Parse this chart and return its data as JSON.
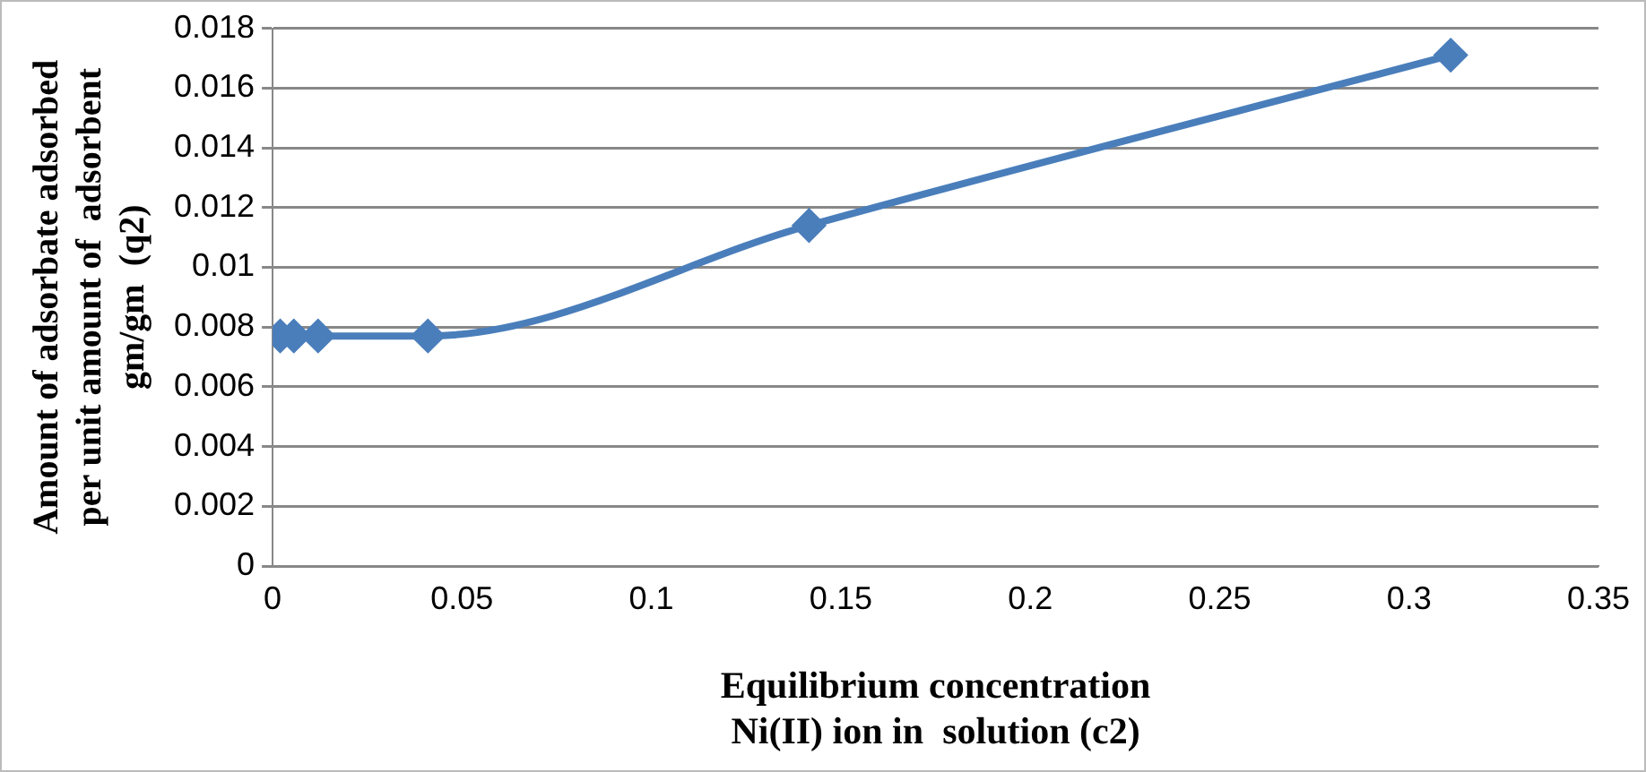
{
  "chart_data": {
    "type": "line",
    "xlabel": "Equilibrium concentration\nNi(II) ion in  solution (c2)",
    "ylabel": "Amount of adsorbate adsorbed\nper unit amount of  adsorbent\ngm/gm  (q2)",
    "x": [
      0.002,
      0.0056,
      0.012,
      0.041,
      0.1416,
      0.311
    ],
    "series": [
      {
        "color": "#4a7ebb",
        "values": [
          0.0077,
          0.0077,
          0.0077,
          0.0077,
          0.0114,
          0.0171
        ]
      }
    ],
    "xlim": [
      0,
      0.35
    ],
    "xticks": [
      0,
      0.05,
      0.1,
      0.15,
      0.2,
      0.25,
      0.3,
      0.35
    ],
    "ylim": [
      0,
      0.018
    ],
    "yticks": [
      0,
      0.002,
      0.004,
      0.006,
      0.008,
      0.01,
      0.012,
      0.014,
      0.016,
      0.018
    ],
    "grid": "y",
    "legend": false,
    "marker": "diamond",
    "line_style": "solid"
  }
}
